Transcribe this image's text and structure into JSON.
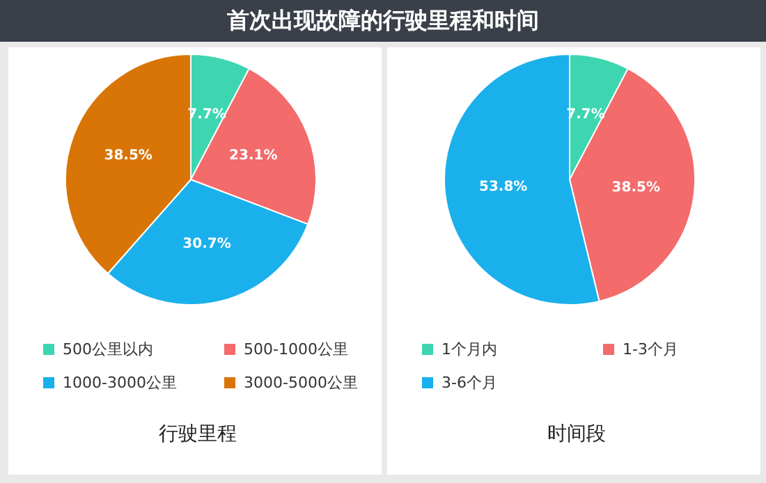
{
  "chart_data": [
    {
      "type": "pie",
      "title": "首次出现故障的行驶里程和时间",
      "subtitle": "行驶里程",
      "categories": [
        "500公里以内",
        "500-1000公里",
        "1000-3000公里",
        "3000-5000公里"
      ],
      "values": [
        7.7,
        23.1,
        30.7,
        38.5
      ],
      "colors": [
        "#3dd6b0",
        "#f36b6b",
        "#1ab0ec",
        "#d97506"
      ],
      "value_labels": [
        "7.7%",
        "23.1%",
        "30.7%",
        "38.5%"
      ],
      "legend": "bottom"
    },
    {
      "type": "pie",
      "subtitle": "时间段",
      "categories": [
        "1个月内",
        "1-3个月",
        "3-6个月"
      ],
      "values": [
        7.7,
        38.5,
        53.8
      ],
      "colors": [
        "#3dd6b0",
        "#f36b6b",
        "#1ab0ec"
      ],
      "value_labels": [
        "7.7%",
        "38.5%",
        "53.8%"
      ],
      "legend": "bottom"
    }
  ]
}
